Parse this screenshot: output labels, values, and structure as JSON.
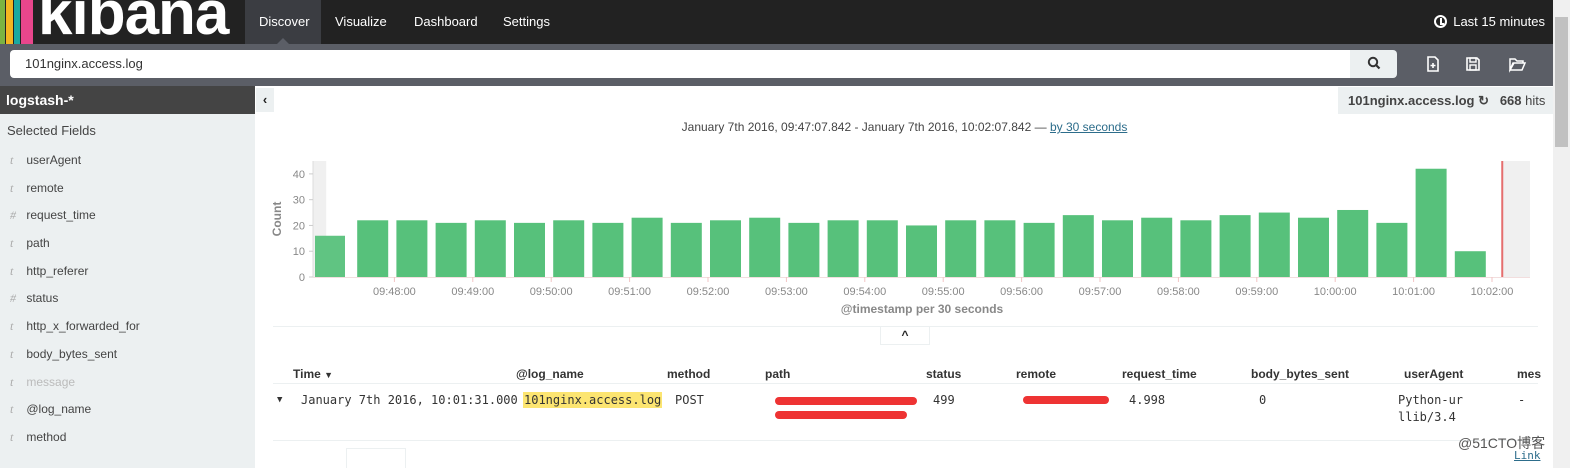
{
  "nav": {
    "logo": "kibana",
    "tabs": [
      "Discover",
      "Visualize",
      "Dashboard",
      "Settings"
    ],
    "active_tab": "Discover",
    "time_picker": "Last 15 minutes"
  },
  "query": {
    "value": "101nginx.access.log"
  },
  "sidebar": {
    "index_pattern": "logstash-*",
    "section_title": "Selected Fields",
    "fields": [
      {
        "type": "t",
        "name": "userAgent"
      },
      {
        "type": "t",
        "name": "remote"
      },
      {
        "type": "#",
        "name": "request_time"
      },
      {
        "type": "t",
        "name": "path"
      },
      {
        "type": "t",
        "name": "http_referer"
      },
      {
        "type": "#",
        "name": "status"
      },
      {
        "type": "t",
        "name": "http_x_forwarded_for"
      },
      {
        "type": "t",
        "name": "body_bytes_sent"
      },
      {
        "type": "t",
        "name": "message"
      },
      {
        "type": "t",
        "name": "@log_name"
      },
      {
        "type": "t",
        "name": "method"
      }
    ]
  },
  "hits": {
    "query": "101nginx.access.log",
    "count": "668",
    "label": "hits"
  },
  "range": {
    "text": "January 7th 2016, 09:47:07.842 - January 7th 2016, 10:02:07.842 —",
    "interval_link": "by 30 seconds"
  },
  "chart_data": {
    "type": "bar",
    "ylabel": "Count",
    "xlabel": "@timestamp per 30 seconds",
    "ylim": [
      0,
      45
    ],
    "yticks": [
      0,
      10,
      20,
      30,
      40
    ],
    "xticks": [
      "09:48:00",
      "09:49:00",
      "09:50:00",
      "09:51:00",
      "09:52:00",
      "09:53:00",
      "09:54:00",
      "09:55:00",
      "09:56:00",
      "09:57:00",
      "09:58:00",
      "09:59:00",
      "10:00:00",
      "10:01:00",
      "10:02:00"
    ],
    "x_start": "09:47:00",
    "interval_seconds": 30,
    "values": [
      16,
      22,
      22,
      21,
      22,
      21,
      22,
      21,
      23,
      21,
      22,
      23,
      21,
      22,
      22,
      20,
      22,
      22,
      21,
      24,
      22,
      23,
      22,
      24,
      25,
      23,
      26,
      21,
      42,
      10
    ],
    "bar_color": "#57c17b",
    "now_marker": "10:02:07.842",
    "now_color": "#e56e6e"
  },
  "table": {
    "columns": [
      "Time",
      "@log_name",
      "method",
      "path",
      "status",
      "remote",
      "request_time",
      "body_bytes_sent",
      "userAgent",
      "mes"
    ],
    "rows": [
      {
        "time": "January 7th 2016, 10:01:31.000",
        "log_name": "101nginx.access.log",
        "method": "POST",
        "status": "499",
        "request_time": "4.998",
        "body_bytes_sent": "0",
        "userAgent": "Python-urllib/3.4",
        "message": "-"
      }
    ],
    "link": "Link"
  },
  "watermark": "@51CTO博客"
}
